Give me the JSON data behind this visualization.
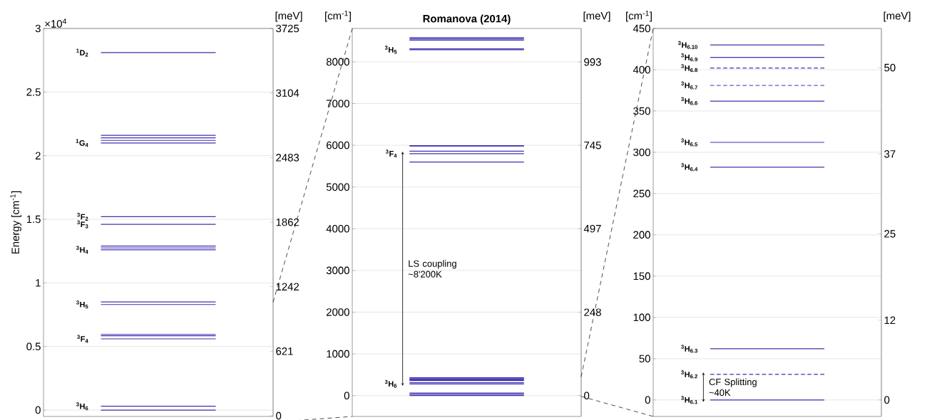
{
  "chart_data": [
    {
      "type": "line",
      "ylabel": "Energy [cm$^{-1}$]",
      "y2label": "[meV]",
      "categories": [
        null,
        null
      ],
      "grid": "y",
      "ylim": [
        -0.05,
        3
      ],
      "yticks": [
        0,
        0.5,
        1,
        1.5,
        2,
        2.5,
        3
      ],
      "y2lim": [
        -6.2,
        3725
      ],
      "y2ticks": [
        0,
        621,
        1242,
        1862,
        2483,
        3104,
        3725
      ],
      "series": [
        {
          "color": "#3c30b0",
          "values": [
            0,
            0
          ]
        },
        {
          "name": "$^{3}$H$_{6}$",
          "color": "#3c30b0",
          "values": [
            0.03,
            0.03
          ]
        },
        {
          "name": "$^{3}$F$_{4}$",
          "color": "#3c30b0",
          "values": [
            0.56,
            0.56
          ]
        },
        {
          "color": "#3c30b0",
          "values": [
            0.585,
            0.585
          ]
        },
        {
          "color": "#3c30b0",
          "values": [
            0.595,
            0.595
          ]
        },
        {
          "name": "$^{3}$H$_{5}$",
          "color": "#3c30b0",
          "values": [
            0.83,
            0.83
          ]
        },
        {
          "color": "#3c30b0",
          "values": [
            0.85,
            0.85
          ]
        },
        {
          "name": "$^{3}$H$_{4}$",
          "color": "#3c30b0",
          "values": [
            1.26,
            1.26
          ]
        },
        {
          "color": "#3c30b0",
          "values": [
            1.275,
            1.275
          ]
        },
        {
          "color": "#3c30b0",
          "values": [
            1.29,
            1.29
          ]
        },
        {
          "name": "$^{3}$F$_{3}$",
          "color": "#3c30b0",
          "values": [
            1.46,
            1.46
          ]
        },
        {
          "name": "$^{3}$F$_{2}$",
          "color": "#3c30b0",
          "values": [
            1.52,
            1.52
          ]
        },
        {
          "name": "$^{1}$G$_{4}$",
          "color": "#3c30b0",
          "values": [
            2.1,
            2.1
          ]
        },
        {
          "color": "#3c30b0",
          "values": [
            2.12,
            2.12
          ]
        },
        {
          "color": "#3c30b0",
          "values": [
            2.14,
            2.14
          ]
        },
        {
          "color": "#3c30b0",
          "values": [
            2.16,
            2.16
          ]
        },
        {
          "name": "$^{1}$D$_{2}$",
          "color": "#3c30b0",
          "values": [
            2.81,
            2.81
          ]
        }
      ],
      "annotations": [
        "×10$^{4}$"
      ]
    },
    {
      "type": "line",
      "title": "Romanova (2014)",
      "ylabel": "[cm$^{-1}$]",
      "y2label": "[meV]",
      "categories": [
        null,
        null
      ],
      "grid": "y",
      "ylim": [
        -500,
        8800
      ],
      "yticks": [
        0,
        1000,
        2000,
        3000,
        4000,
        5000,
        6000,
        7000,
        8000
      ],
      "y2lim": [
        -62.1,
        1092.96
      ],
      "y2ticks": [
        0,
        248,
        497,
        745,
        993
      ],
      "series": [
        {
          "color": "#3c30b0",
          "values": [
            0,
            0
          ]
        },
        {
          "color": "#3c30b0",
          "values": [
            30,
            30
          ]
        },
        {
          "color": "#3c30b0",
          "values": [
            60,
            60
          ]
        },
        {
          "name": "$^{3}$H$_{6}$",
          "color": "#3c30b0",
          "values": [
            280,
            280
          ]
        },
        {
          "color": "#3c30b0",
          "values": [
            310,
            310
          ]
        },
        {
          "color": "#3c30b0",
          "values": [
            360,
            360
          ]
        },
        {
          "color": "#3c30b0",
          "values": [
            380,
            380
          ]
        },
        {
          "color": "#3c30b0",
          "values": [
            400,
            400
          ]
        },
        {
          "color": "#3c30b0",
          "values": [
            420,
            420
          ]
        },
        {
          "color": "#3c30b0",
          "values": [
            430,
            430
          ]
        },
        {
          "color": "#3c30b0",
          "values": [
            5600,
            5600
          ]
        },
        {
          "name": "$^{3}$F$_{4}$",
          "color": "#3c30b0",
          "values": [
            5800,
            5800
          ]
        },
        {
          "color": "#3c30b0",
          "values": [
            5860,
            5860
          ]
        },
        {
          "color": "#3c30b0",
          "values": [
            5980,
            5980
          ]
        },
        {
          "color": "#3c30b0",
          "values": [
            5990,
            5990
          ]
        },
        {
          "name": "$^{3}$H$_{5}$",
          "color": "#3c30b0",
          "values": [
            8290,
            8290
          ]
        },
        {
          "color": "#3c30b0",
          "values": [
            8310,
            8310
          ]
        },
        {
          "color": "#3c30b0",
          "values": [
            8520,
            8520
          ]
        },
        {
          "color": "#3c30b0",
          "values": [
            8550,
            8550
          ]
        },
        {
          "color": "#3c30b0",
          "values": [
            8580,
            8580
          ]
        }
      ],
      "annotations": [
        "LS coupling ~8'200K"
      ]
    },
    {
      "type": "line",
      "ylabel": "[cm$^{-1}$]",
      "y2label": "[meV]",
      "categories": [
        null,
        null
      ],
      "grid": "y",
      "ylim": [
        -20,
        450
      ],
      "yticks": [
        0,
        50,
        100,
        150,
        200,
        250,
        300,
        350,
        400,
        450
      ],
      "y2lim": [
        -2.484,
        55.89
      ],
      "y2ticks": [
        0,
        12,
        25,
        37,
        50
      ],
      "series": [
        {
          "name": "$^{3}$H$_{6.1}$",
          "color": "#3c30b0",
          "values": [
            0,
            0
          ]
        },
        {
          "name": "$^{3}$H$_{6.2}$",
          "color": "#3c30b0",
          "values": [
            31,
            31
          ],
          "line_style": "dashed"
        },
        {
          "name": "$^{3}$H$_{6.3}$",
          "color": "#3c30b0",
          "values": [
            62,
            62
          ]
        },
        {
          "name": "$^{3}$H$_{6.4}$",
          "color": "#3c30b0",
          "values": [
            282,
            282
          ]
        },
        {
          "name": "$^{3}$H$_{6.5}$",
          "color": "#3c30b0",
          "values": [
            312,
            312
          ]
        },
        {
          "name": "$^{3}$H$_{6.6}$",
          "color": "#3c30b0",
          "values": [
            362,
            362
          ]
        },
        {
          "name": "$^{3}$H$_{6.7}$",
          "color": "#3c30b0",
          "values": [
            381,
            381
          ],
          "line_style": "dashed"
        },
        {
          "name": "$^{3}$H$_{6.8}$",
          "color": "#3c30b0",
          "values": [
            402,
            402
          ],
          "line_style": "dashed"
        },
        {
          "name": "$^{3}$H$_{6.9}$",
          "color": "#3c30b0",
          "values": [
            415,
            415
          ]
        },
        {
          "name": "$^{3}$H$_{6.10}$",
          "color": "#3c30b0",
          "values": [
            430,
            430
          ]
        }
      ],
      "annotations": [
        "CF Splitting ~40K"
      ]
    }
  ]
}
